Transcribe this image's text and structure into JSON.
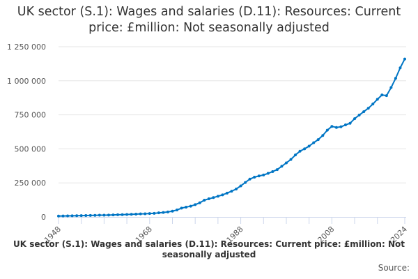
{
  "chart_data": {
    "type": "line",
    "title": "UK sector (S.1): Wages and salaries (D.11): Resources: Current price: £million: Not seasonally adjusted",
    "caption": "UK sector (S.1): Wages and salaries (D.11): Resources: Current price: £million: Not seasonally adjusted",
    "source_label": "Source:",
    "xlabel": "",
    "ylabel": "",
    "xlim": [
      1948,
      2024
    ],
    "ylim": [
      0,
      1250000
    ],
    "y_ticks": [
      0,
      250000,
      500000,
      750000,
      1000000,
      1250000
    ],
    "y_tick_labels": [
      "0",
      "250 000",
      "500 000",
      "750 000",
      "1 000 000",
      "1 250 000"
    ],
    "x_tick_labels": [
      "1948",
      "1968",
      "1988",
      "2008",
      "2024"
    ],
    "grid": "horizontal",
    "legend": "none",
    "color": "#0075C4",
    "x": [
      1948,
      1949,
      1950,
      1951,
      1952,
      1953,
      1954,
      1955,
      1956,
      1957,
      1958,
      1959,
      1960,
      1961,
      1962,
      1963,
      1964,
      1965,
      1966,
      1967,
      1968,
      1969,
      1970,
      1971,
      1972,
      1973,
      1974,
      1975,
      1976,
      1977,
      1978,
      1979,
      1980,
      1981,
      1982,
      1983,
      1984,
      1985,
      1986,
      1987,
      1988,
      1989,
      1990,
      1991,
      1992,
      1993,
      1994,
      1995,
      1996,
      1997,
      1998,
      1999,
      2000,
      2001,
      2002,
      2003,
      2004,
      2005,
      2006,
      2007,
      2008,
      2009,
      2010,
      2011,
      2012,
      2013,
      2014,
      2015,
      2016,
      2017,
      2018,
      2019,
      2020,
      2021,
      2022,
      2023,
      2024
    ],
    "values": [
      6500,
      7000,
      7500,
      8300,
      8900,
      9400,
      10000,
      11000,
      11800,
      12500,
      13000,
      13600,
      14800,
      16000,
      16800,
      17700,
      19300,
      20800,
      22200,
      23000,
      24700,
      26500,
      29800,
      32900,
      36800,
      42400,
      51000,
      64500,
      72000,
      79000,
      90000,
      104000,
      123000,
      133000,
      142000,
      152000,
      162000,
      175000,
      189000,
      205000,
      228000,
      253000,
      278000,
      292000,
      301000,
      308000,
      320000,
      333000,
      348000,
      372000,
      397000,
      422000,
      455000,
      483000,
      500000,
      520000,
      545000,
      568000,
      598000,
      637000,
      665000,
      657000,
      662000,
      676000,
      688000,
      722000,
      748000,
      773000,
      798000,
      829000,
      864000,
      896000,
      891000,
      950000,
      1018000,
      1095000,
      1160000
    ]
  }
}
